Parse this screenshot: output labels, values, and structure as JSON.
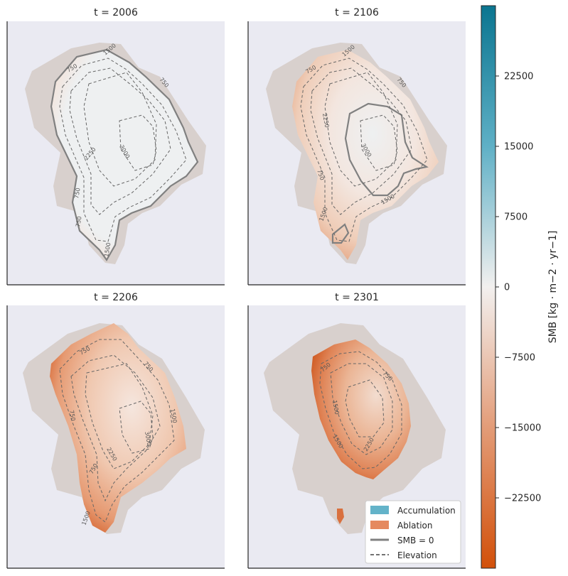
{
  "chart_data": {
    "type": "heatmap",
    "panels": [
      {
        "title": "t = 2006",
        "smb_zero_contour": true,
        "elevation_labels": [
          "750",
          "1500",
          "2250",
          "3000",
          "750",
          "750",
          "750",
          "1500"
        ]
      },
      {
        "title": "t = 2106",
        "smb_zero_contour": true,
        "elevation_labels": [
          "750",
          "1500",
          "2250",
          "3000",
          "750",
          "750",
          "1500",
          "1500"
        ]
      },
      {
        "title": "t = 2206",
        "smb_zero_contour": false,
        "elevation_labels": [
          "750",
          "750",
          "2250",
          "3000",
          "1500",
          "750",
          "1500",
          "750"
        ]
      },
      {
        "title": "t = 2301",
        "smb_zero_contour": false,
        "elevation_labels": [
          "750",
          "750",
          "1500",
          "2250",
          "1500"
        ]
      }
    ],
    "colorbar": {
      "label": "SMB [kg · m−2 · yr−1]",
      "range": [
        -30000,
        30000
      ],
      "ticks": [
        22500,
        15000,
        7500,
        0,
        -7500,
        -15000,
        -22500
      ],
      "tick_labels": [
        "22500",
        "15000",
        "7500",
        "0",
        "−7500",
        "−15000",
        "−22500"
      ],
      "colors": {
        "high": "#0a7590",
        "mid": "#f2f0ef",
        "low": "#d2500a"
      }
    },
    "legend": {
      "placement": "lower-right of last panel",
      "items": [
        {
          "label": "Accumulation",
          "kind": "patch",
          "color": "#63b3c9"
        },
        {
          "label": "Ablation",
          "kind": "patch",
          "color": "#e5895f"
        },
        {
          "label": "SMB = 0",
          "kind": "solid-line",
          "color": "#808080"
        },
        {
          "label": "Elevation",
          "kind": "dashed-line",
          "color": "#444444"
        }
      ]
    },
    "background_color": "#eaeaf2"
  }
}
